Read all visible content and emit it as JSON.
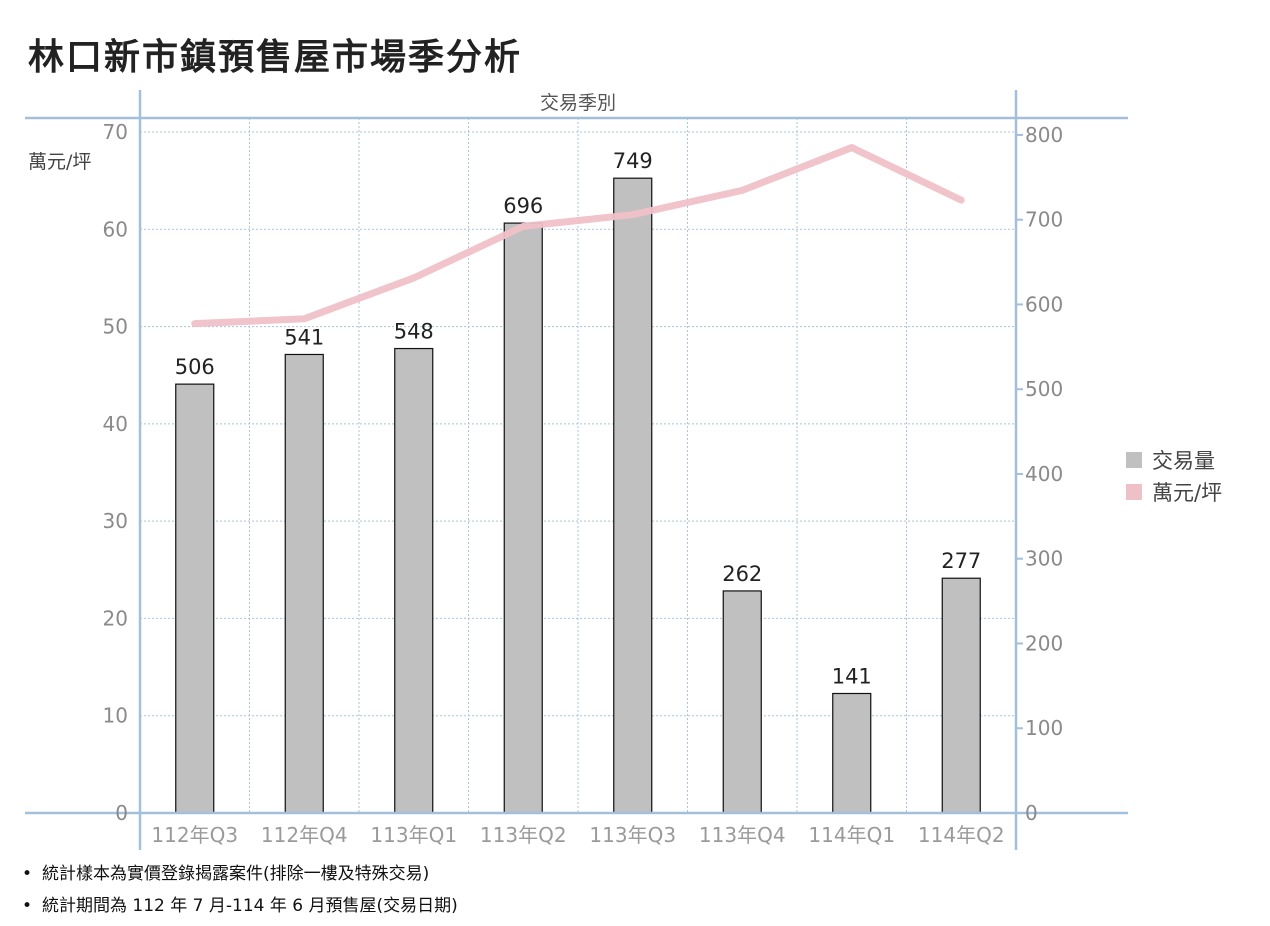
{
  "title": "林口新市鎮預售屋市場季分析",
  "chart_data": {
    "type": "bar",
    "x_title": "交易季別",
    "categories": [
      "112年Q3",
      "112年Q4",
      "113年Q1",
      "113年Q2",
      "113年Q3",
      "113年Q4",
      "114年Q1",
      "114年Q2"
    ],
    "series": [
      {
        "name": "交易量",
        "type": "bar",
        "axis": "right",
        "color": "#c0c0c0",
        "values": [
          506,
          541,
          548,
          696,
          749,
          262,
          141,
          277
        ]
      },
      {
        "name": "萬元/坪",
        "type": "line",
        "axis": "left",
        "color": "#f0c0c8",
        "values": [
          50.3,
          50.8,
          55.0,
          60.3,
          61.5,
          64.0,
          68.4,
          63.0
        ]
      }
    ],
    "y_left": {
      "label": "萬元/坪",
      "range": [
        0,
        70
      ],
      "ticks": [
        0,
        10,
        20,
        30,
        40,
        50,
        60,
        70
      ]
    },
    "y_right": {
      "label": "",
      "range": [
        0,
        820
      ],
      "ticks": [
        0,
        100,
        200,
        300,
        400,
        500,
        600,
        700,
        800
      ]
    },
    "grid": true,
    "legend_position": "right"
  },
  "legend": [
    {
      "label": "交易量",
      "color": "#c0c0c0"
    },
    {
      "label": "萬元/坪",
      "color": "#f0c0c8"
    }
  ],
  "notes": [
    {
      "bullet": "•",
      "text": "統計樣本為實價登錄揭露案件(排除一樓及特殊交易)"
    },
    {
      "bullet": "•",
      "text": "統計期間為 112 年 7 月-114 年 6 月預售屋(交易日期)"
    }
  ]
}
